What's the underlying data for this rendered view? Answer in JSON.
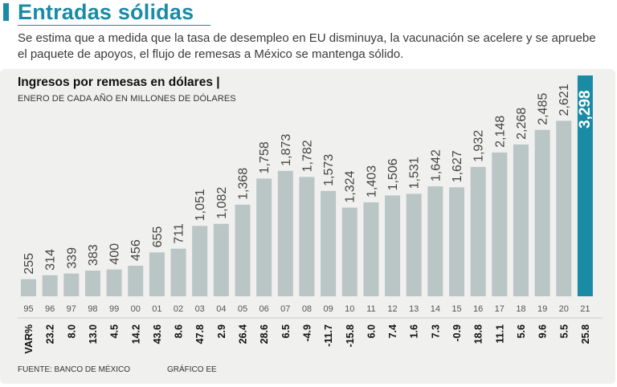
{
  "header": {
    "title": "Entradas sólidas",
    "subtitle": "Se estima que a medida que la tasa de desempleo en EU disminuya, la vacunación se acelere y se apruebe el paquete de apoyos, el flujo de remesas a México se mantenga sólido."
  },
  "chart_data": {
    "type": "bar",
    "title": "Ingresos por remesas en dólares |",
    "subtitle": "ENERO DE CADA AÑO EN MILLONES DE DÓLARES",
    "categories": [
      "95",
      "96",
      "97",
      "98",
      "99",
      "00",
      "01",
      "02",
      "03",
      "04",
      "05",
      "06",
      "07",
      "08",
      "09",
      "10",
      "11",
      "12",
      "13",
      "14",
      "15",
      "16",
      "17",
      "18",
      "19",
      "20",
      "21"
    ],
    "values": [
      255,
      314,
      339,
      383,
      400,
      456,
      655,
      711,
      1051,
      1082,
      1368,
      1758,
      1873,
      1782,
      1573,
      1324,
      1403,
      1506,
      1531,
      1642,
      1627,
      1932,
      2148,
      2268,
      2485,
      2621,
      3298
    ],
    "value_labels": [
      "255",
      "314",
      "339",
      "383",
      "400",
      "456",
      "655",
      "711",
      "1,051",
      "1,082",
      "1,368",
      "1,758",
      "1,873",
      "1,782",
      "1,573",
      "1,324",
      "1,403",
      "1,506",
      "1,531",
      "1,642",
      "1,627",
      "1,932",
      "2,148",
      "2,268",
      "2,485",
      "2,621",
      "3,298"
    ],
    "var_label": "VAR%",
    "var_values": [
      "23.2",
      "8.0",
      "13.0",
      "4.5",
      "14.2",
      "43.6",
      "8.6",
      "47.8",
      "2.9",
      "26.4",
      "28.6",
      "6.5",
      "-4.9",
      "-11.7",
      "-15.8",
      "6.0",
      "7.4",
      "1.6",
      "7.3",
      "-0.9",
      "18.8",
      "11.1",
      "5.6",
      "9.6",
      "5.5",
      "25.8"
    ],
    "highlight_index": 26,
    "ylim": [
      0,
      3298
    ],
    "xlabel": "",
    "ylabel": ""
  },
  "colors": {
    "accent": "#1a8ba5",
    "bar": "#b9c6c5",
    "panel": "#f0f0ee"
  },
  "footer": {
    "source": "FUENTE: BANCO DE MÉXICO",
    "credit": "GRÁFICO EE"
  }
}
